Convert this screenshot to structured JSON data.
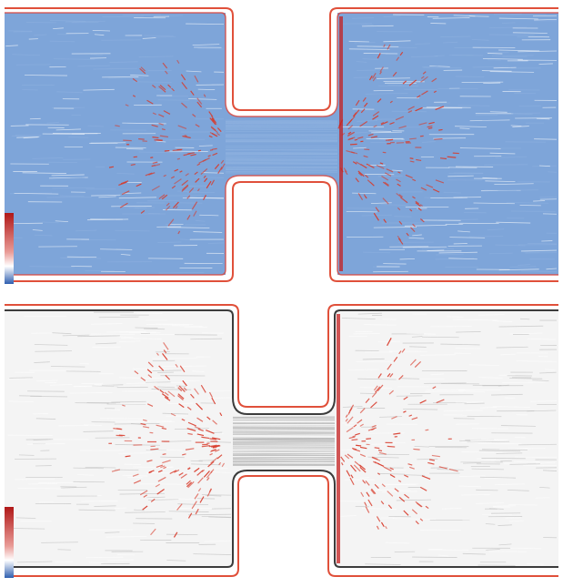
{
  "figure": {
    "panels": [
      {
        "id": "top",
        "background_color": "#6f99d3",
        "line_color": "#8fb2e0",
        "highlight_color": "#d83a2a",
        "wall_color": "#e0503a",
        "colorbar": [
          "#2f5fb0",
          "#ffffff",
          "#b01818"
        ]
      },
      {
        "id": "bottom",
        "background_color": "#f3f3f3",
        "line_color": "#b9b9b9",
        "highlight_color": "#d83a2a",
        "wall_color": "#e0503a",
        "colorbar": [
          "#2f5fb0",
          "#ffffff",
          "#b01818"
        ]
      }
    ]
  }
}
